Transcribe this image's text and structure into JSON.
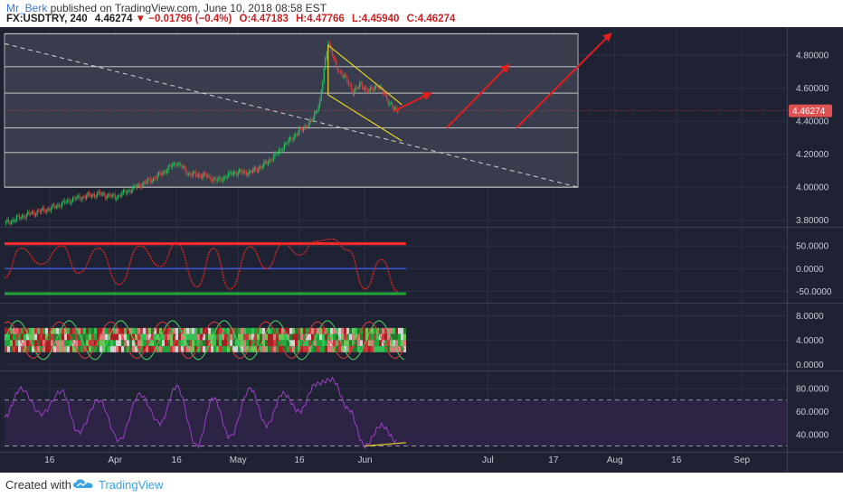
{
  "header": {
    "author": "Mr_Berk",
    "published_text": " published on TradingView.com, June 10, 2018 08:58 EST",
    "symbol": "FX:USDTRY, 240",
    "last": "4.46274",
    "change": "−0.01796 (−0.4%)",
    "open": "O:4.47183",
    "high": "H:4.47766",
    "low": "L:4.45940",
    "close": "C:4.46274"
  },
  "footer": {
    "created_with": "Created with",
    "brand": "TradingView"
  },
  "colors": {
    "background": "#1e2233",
    "panel_border": "#3a3f52",
    "grid": "#2c3144",
    "axis_text": "#c8ccd6",
    "price_up": "#22c55e",
    "price_down": "#e03a3a",
    "rectangle": "#3b3f4f",
    "trend_dashed": "#d0d0d0",
    "channel": "#e6d420",
    "arrow": "#e01e1e",
    "last_price_line": "#e04040",
    "stoch": "#d8261f",
    "stoch_upper_band": "#ff2a2a",
    "stoch_mid": "#3b58d9",
    "stoch_lower_band": "#22a83a",
    "rsi": "#9b3fc4",
    "rsi_band": "#2e2447"
  },
  "chart_data": [
    {
      "type": "candlestick",
      "name": "price-panel",
      "x_axis_labels": [
        "16",
        "Apr",
        "16",
        "May",
        "16",
        "Jun",
        "Jul",
        "17",
        "Aug",
        "16",
        "Sep"
      ],
      "x_axis_dates": [
        "2018-03-16",
        "2018-04-01",
        "2018-04-16",
        "2018-05-01",
        "2018-05-16",
        "2018-06-01",
        "2018-07-01",
        "2018-07-17",
        "2018-08-01",
        "2018-08-16",
        "2018-09-01"
      ],
      "y_axis_labels": [
        "4.80000",
        "4.60000",
        "4.40000",
        "4.20000",
        "4.00000",
        "3.80000"
      ],
      "y_axis_values": [
        4.8,
        4.6,
        4.4,
        4.2,
        4.0,
        3.8
      ],
      "ylim": [
        3.76,
        4.97
      ],
      "last_price_label": "4.46274",
      "last_price": 4.46274,
      "close_path": [
        [
          "2018-03-05",
          3.78
        ],
        [
          "2018-03-10",
          3.83
        ],
        [
          "2018-03-16",
          3.87
        ],
        [
          "2018-03-22",
          3.93
        ],
        [
          "2018-03-28",
          3.96
        ],
        [
          "2018-04-01",
          3.94
        ],
        [
          "2018-04-06",
          4.0
        ],
        [
          "2018-04-11",
          4.06
        ],
        [
          "2018-04-16",
          4.15
        ],
        [
          "2018-04-19",
          4.08
        ],
        [
          "2018-04-23",
          4.07
        ],
        [
          "2018-04-26",
          4.04
        ],
        [
          "2018-04-30",
          4.09
        ],
        [
          "2018-05-04",
          4.09
        ],
        [
          "2018-05-07",
          4.13
        ],
        [
          "2018-05-10",
          4.19
        ],
        [
          "2018-05-13",
          4.27
        ],
        [
          "2018-05-16",
          4.34
        ],
        [
          "2018-05-19",
          4.4
        ],
        [
          "2018-05-21",
          4.52
        ],
        [
          "2018-05-23",
          4.89
        ],
        [
          "2018-05-25",
          4.72
        ],
        [
          "2018-05-27",
          4.67
        ],
        [
          "2018-05-29",
          4.58
        ],
        [
          "2018-05-31",
          4.62
        ],
        [
          "2018-06-02",
          4.58
        ],
        [
          "2018-06-04",
          4.62
        ],
        [
          "2018-06-06",
          4.55
        ],
        [
          "2018-06-08",
          4.47
        ],
        [
          "2018-06-09",
          4.46274
        ]
      ],
      "horizontal_levels": [
        4.93,
        4.73,
        4.57,
        4.36,
        4.21,
        4.0
      ],
      "rectangle": {
        "x_from": "2018-03-05",
        "x_to": "2018-07-23",
        "y_from": 4.0,
        "y_to": 4.93
      },
      "trend_dashed": {
        "from": [
          "2018-03-05",
          4.87
        ],
        "to": [
          "2018-07-23",
          4.0
        ]
      },
      "channel_upper": {
        "from": [
          "2018-05-23",
          4.86
        ],
        "to": [
          "2018-06-10",
          4.5
        ]
      },
      "channel_lower": {
        "from": [
          "2018-05-23",
          4.56
        ],
        "to": [
          "2018-06-10",
          4.28
        ]
      },
      "arrows": [
        {
          "from": [
            "2018-06-08",
            4.46
          ],
          "to": [
            "2018-06-17",
            4.57
          ]
        },
        {
          "from": [
            "2018-06-21",
            4.36
          ],
          "to": [
            "2018-07-06",
            4.74
          ]
        },
        {
          "from": [
            "2018-07-08",
            4.36
          ],
          "to": [
            "2018-07-31",
            4.93
          ]
        }
      ]
    },
    {
      "type": "line",
      "name": "stochastic-panel",
      "y_axis_labels": [
        "50.0000",
        "0.0000",
        "-50.0000"
      ],
      "y_axis_values": [
        50,
        0,
        -50
      ],
      "ylim": [
        -75,
        90
      ],
      "upper_band": 55,
      "mid_line": 0,
      "lower_band": -55,
      "x": [
        "2018-03-05",
        "2018-03-09",
        "2018-03-14",
        "2018-03-19",
        "2018-03-23",
        "2018-03-28",
        "2018-04-02",
        "2018-04-07",
        "2018-04-12",
        "2018-04-16",
        "2018-04-21",
        "2018-04-25",
        "2018-04-29",
        "2018-05-04",
        "2018-05-08",
        "2018-05-12",
        "2018-05-16",
        "2018-05-20",
        "2018-05-24",
        "2018-05-28",
        "2018-06-01",
        "2018-06-05",
        "2018-06-09"
      ],
      "values": [
        -20,
        45,
        10,
        50,
        -10,
        45,
        -35,
        50,
        5,
        55,
        -40,
        45,
        -45,
        48,
        0,
        55,
        30,
        60,
        65,
        40,
        -45,
        20,
        -50
      ]
    },
    {
      "type": "heatmap",
      "name": "oscillator-panel",
      "y_axis_labels": [
        "8.0000",
        "4.0000",
        "0.0000"
      ],
      "y_axis_values": [
        8,
        4,
        0
      ],
      "ylim": [
        -1,
        10
      ],
      "band_range": [
        2,
        6
      ]
    },
    {
      "type": "line",
      "name": "rsi-panel",
      "y_axis_labels": [
        "80.0000",
        "60.0000",
        "40.0000"
      ],
      "y_axis_values": [
        80,
        60,
        40
      ],
      "ylim": [
        25,
        95
      ],
      "upper_band": 70,
      "lower_band": 30,
      "x": [
        "2018-03-05",
        "2018-03-09",
        "2018-03-14",
        "2018-03-19",
        "2018-03-23",
        "2018-03-28",
        "2018-04-02",
        "2018-04-07",
        "2018-04-12",
        "2018-04-16",
        "2018-04-21",
        "2018-04-25",
        "2018-04-29",
        "2018-05-04",
        "2018-05-08",
        "2018-05-12",
        "2018-05-16",
        "2018-05-20",
        "2018-05-24",
        "2018-05-28",
        "2018-06-01",
        "2018-06-05",
        "2018-06-09"
      ],
      "values": [
        55,
        80,
        58,
        78,
        42,
        70,
        35,
        75,
        50,
        82,
        30,
        72,
        38,
        80,
        48,
        76,
        60,
        84,
        88,
        62,
        30,
        48,
        33
      ],
      "divergence_line": {
        "from": [
          "2018-06-01",
          30
        ],
        "to": [
          "2018-06-11",
          33
        ]
      }
    }
  ]
}
